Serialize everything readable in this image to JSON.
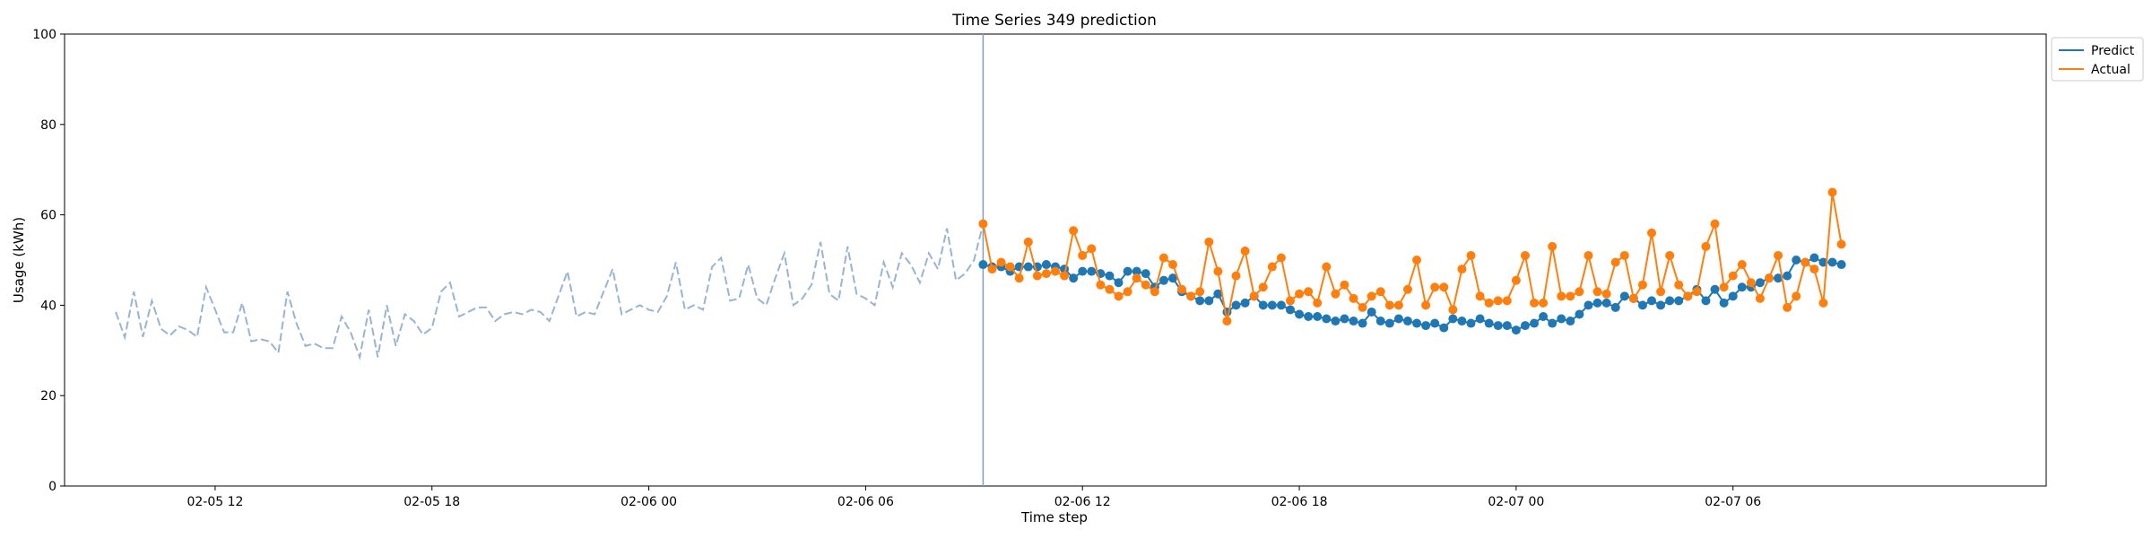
{
  "chart_data": {
    "type": "line",
    "title": "Time Series 349 prediction",
    "xlabel": "Time step",
    "ylabel": "Usage (kWh)",
    "ylim": [
      0,
      100
    ],
    "xlim": [
      "2024-02-05 07:50",
      "2024-02-07 14:40"
    ],
    "yticks": [
      0,
      20,
      40,
      60,
      80,
      100
    ],
    "xticks": [
      {
        "t": "2024-02-05 12:00",
        "label": "02-05 12"
      },
      {
        "t": "2024-02-05 18:00",
        "label": "02-05 18"
      },
      {
        "t": "2024-02-06 00:00",
        "label": "02-06 00"
      },
      {
        "t": "2024-02-06 06:00",
        "label": "02-06 06"
      },
      {
        "t": "2024-02-06 12:00",
        "label": "02-06 12"
      },
      {
        "t": "2024-02-06 18:00",
        "label": "02-06 18"
      },
      {
        "t": "2024-02-07 00:00",
        "label": "02-07 00"
      },
      {
        "t": "2024-02-07 06:00",
        "label": "02-07 06"
      }
    ],
    "grid": false,
    "legend_position": "outside top-right",
    "forecast_start": "2024-02-06 09:15",
    "history": {
      "start": "2024-02-05 09:15",
      "interval_minutes": 15,
      "color": "#98b4d4",
      "values": [
        38.5,
        32.9,
        43.0,
        33.0,
        41.0,
        34.8,
        33.3,
        35.3,
        34.5,
        33.0,
        44.0,
        39.0,
        34.0,
        34.0,
        40.5,
        32.0,
        32.5,
        32.0,
        29.5,
        43.0,
        36.0,
        31.0,
        31.5,
        30.5,
        30.5,
        37.5,
        34.0,
        28.5,
        39.0,
        28.5,
        40.0,
        31.0,
        38.0,
        36.5,
        33.5,
        35.0,
        43.0,
        45.0,
        37.5,
        38.5,
        39.5,
        39.5,
        36.5,
        38.0,
        38.5,
        38.0,
        39.0,
        38.5,
        36.5,
        42.0,
        47.5,
        37.5,
        38.5,
        38.0,
        43.0,
        48.0,
        38.0,
        39.0,
        40.0,
        39.0,
        38.5,
        42.0,
        49.5,
        39.0,
        40.0,
        39.0,
        48.5,
        50.5,
        41.0,
        41.5,
        49.0,
        41.5,
        40.0,
        46.0,
        51.5,
        40.0,
        41.5,
        44.5,
        54.0,
        42.5,
        41.0,
        53.0,
        42.5,
        41.5,
        40.0,
        49.5,
        44.0,
        51.5,
        49.0,
        45.0,
        51.5,
        48.0,
        57.0,
        45.5,
        47.0,
        50.0,
        58.0
      ]
    },
    "series": [
      {
        "name": "Predict",
        "color": "#1f77b4",
        "start": "2024-02-06 09:15",
        "interval_minutes": 15,
        "values": [
          49.0,
          48.5,
          48.5,
          47.5,
          48.5,
          48.5,
          48.5,
          49.0,
          48.5,
          48.0,
          46.0,
          47.5,
          47.5,
          47.0,
          46.5,
          45.0,
          47.5,
          47.5,
          47.0,
          44.0,
          45.5,
          46.0,
          43.0,
          42.0,
          41.0,
          41.0,
          42.5,
          38.5,
          40.0,
          40.5,
          42.0,
          40.0,
          40.0,
          40.0,
          39.0,
          38.0,
          37.5,
          37.5,
          37.0,
          36.5,
          37.0,
          36.5,
          36.0,
          38.5,
          36.5,
          36.0,
          37.0,
          36.5,
          36.0,
          35.5,
          36.0,
          35.0,
          37.0,
          36.5,
          36.0,
          37.0,
          36.0,
          35.5,
          35.5,
          34.5,
          35.5,
          36.0,
          37.5,
          36.0,
          37.0,
          36.5,
          38.0,
          40.0,
          40.5,
          40.5,
          39.5,
          42.0,
          41.5,
          40.0,
          41.0,
          40.0,
          41.0,
          41.0,
          42.0,
          43.5,
          41.0,
          43.5,
          40.5,
          42.0,
          44.0,
          44.0,
          45.0,
          46.0,
          46.0,
          46.5,
          50.0,
          49.5,
          50.5,
          49.5,
          49.5,
          49.0
        ]
      },
      {
        "name": "Actual",
        "color": "#ff7f0e",
        "start": "2024-02-06 09:15",
        "interval_minutes": 15,
        "values": [
          58.0,
          48.0,
          49.5,
          48.5,
          46.0,
          54.0,
          46.5,
          47.0,
          47.5,
          46.5,
          56.5,
          51.0,
          52.5,
          44.5,
          43.5,
          42.0,
          43.0,
          46.0,
          44.5,
          43.0,
          50.5,
          49.0,
          43.5,
          42.0,
          43.0,
          54.0,
          47.5,
          36.5,
          46.5,
          52.0,
          42.0,
          44.0,
          48.5,
          50.5,
          41.0,
          42.5,
          43.0,
          40.5,
          48.5,
          42.5,
          44.5,
          41.5,
          39.5,
          42.0,
          43.0,
          40.0,
          40.0,
          43.5,
          50.0,
          40.0,
          44.0,
          44.0,
          39.0,
          48.0,
          51.0,
          42.0,
          40.5,
          41.0,
          41.0,
          45.5,
          51.0,
          40.5,
          40.5,
          53.0,
          42.0,
          42.0,
          43.0,
          51.0,
          43.0,
          42.5,
          49.5,
          51.0,
          41.5,
          44.5,
          56.0,
          43.0,
          51.0,
          44.5,
          42.0,
          43.0,
          53.0,
          58.0,
          44.0,
          46.5,
          49.0,
          45.0,
          41.5,
          46.0,
          51.0,
          39.5,
          42.0,
          49.5,
          48.0,
          40.5,
          65.0,
          53.5
        ]
      }
    ]
  }
}
